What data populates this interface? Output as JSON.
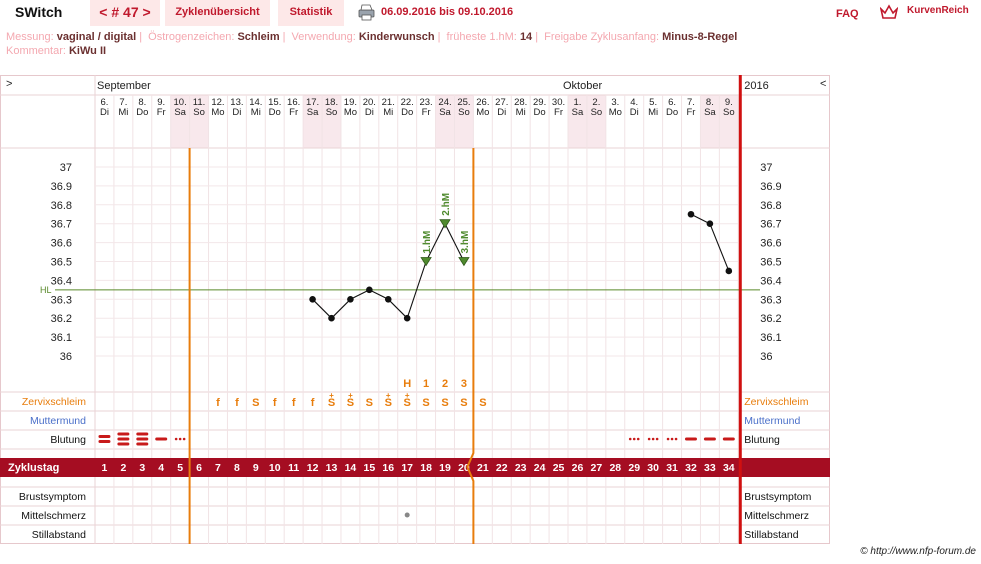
{
  "app": {
    "title": "SWitch"
  },
  "tabs": {
    "cycle": "< # 47 >",
    "overview": "Zyklenübersicht",
    "stats": "Statistik"
  },
  "date_range": "06.09.2016 bis 09.10.2016",
  "faq": "FAQ",
  "brand": "KurvenReich",
  "info": {
    "messung_label": "Messung:",
    "messung": "vaginal / digital",
    "oestrogen_label": "Östrogenzeichen:",
    "oestrogen": "Schleim",
    "verwendung_label": "Verwendung:",
    "verwendung": "Kinderwunsch",
    "fruehest_label": "früheste 1.hM:",
    "fruehest": "14",
    "freigabe_label": "Freigabe Zyklusanfang:",
    "freigabe": "Minus-8-Regel",
    "kommentar_label": "Kommentar:",
    "kommentar": "KiWu II"
  },
  "header": {
    "collapse_left": ">",
    "collapse_right": "<",
    "month_1": "September",
    "month_2": "Oktober",
    "year": "2016"
  },
  "copyright": "© http://www.nfp-forum.de",
  "colors": {
    "accent": "#c0192d",
    "orange": "#e87d0c",
    "hl_line": "#5a8a2a",
    "weekend": "#f8e8ec",
    "zyklustag_bg": "#a50d22",
    "mm_label": "#4a6fc9"
  },
  "chart_data": {
    "type": "line",
    "days": [
      {
        "date": "6.",
        "wd": "Di"
      },
      {
        "date": "7.",
        "wd": "Mi"
      },
      {
        "date": "8.",
        "wd": "Do"
      },
      {
        "date": "9.",
        "wd": "Fr"
      },
      {
        "date": "10.",
        "wd": "Sa"
      },
      {
        "date": "11.",
        "wd": "So"
      },
      {
        "date": "12.",
        "wd": "Mo"
      },
      {
        "date": "13.",
        "wd": "Di"
      },
      {
        "date": "14.",
        "wd": "Mi"
      },
      {
        "date": "15.",
        "wd": "Do"
      },
      {
        "date": "16.",
        "wd": "Fr"
      },
      {
        "date": "17.",
        "wd": "Sa"
      },
      {
        "date": "18.",
        "wd": "So"
      },
      {
        "date": "19.",
        "wd": "Mo"
      },
      {
        "date": "20.",
        "wd": "Di"
      },
      {
        "date": "21.",
        "wd": "Mi"
      },
      {
        "date": "22.",
        "wd": "Do"
      },
      {
        "date": "23.",
        "wd": "Fr"
      },
      {
        "date": "24.",
        "wd": "Sa"
      },
      {
        "date": "25.",
        "wd": "So"
      },
      {
        "date": "26.",
        "wd": "Mo"
      },
      {
        "date": "27.",
        "wd": "Di"
      },
      {
        "date": "28.",
        "wd": "Mi"
      },
      {
        "date": "29.",
        "wd": "Do"
      },
      {
        "date": "30.",
        "wd": "Fr"
      },
      {
        "date": "1.",
        "wd": "Sa"
      },
      {
        "date": "2.",
        "wd": "So"
      },
      {
        "date": "3.",
        "wd": "Mo"
      },
      {
        "date": "4.",
        "wd": "Di"
      },
      {
        "date": "5.",
        "wd": "Mi"
      },
      {
        "date": "6.",
        "wd": "Do"
      },
      {
        "date": "7.",
        "wd": "Fr"
      },
      {
        "date": "8.",
        "wd": "Sa"
      },
      {
        "date": "9.",
        "wd": "So"
      }
    ],
    "weekend_day_indices": [
      4,
      5,
      11,
      12,
      18,
      19,
      25,
      26,
      32,
      33
    ],
    "y_ticks": [
      "37",
      "36.9",
      "36.8",
      "36.7",
      "36.6",
      "36.5",
      "36.4",
      "36.3",
      "36.2",
      "36.1",
      "36"
    ],
    "ylim": [
      36.0,
      37.0
    ],
    "temperatures": [
      {
        "day": 12,
        "temp": 36.3
      },
      {
        "day": 13,
        "temp": 36.2
      },
      {
        "day": 14,
        "temp": 36.3
      },
      {
        "day": 15,
        "temp": 36.35
      },
      {
        "day": 16,
        "temp": 36.3
      },
      {
        "day": 17,
        "temp": 36.2
      },
      {
        "day": 18,
        "temp": 36.5,
        "marker": "1.hM"
      },
      {
        "day": 19,
        "temp": 36.7,
        "marker": "2.hM"
      },
      {
        "day": 20,
        "temp": 36.5,
        "marker": "3.hM"
      },
      {
        "day": 32,
        "temp": 36.75
      },
      {
        "day": 33,
        "temp": 36.7
      },
      {
        "day": 34,
        "temp": 36.45
      }
    ],
    "hl_label": "HL",
    "hl_value": 36.35,
    "lines_after_day": [
      5,
      20
    ],
    "rows": {
      "zervix_label": "Zervixschleim",
      "muttermund_label": "Muttermund",
      "blutung_label": "Blutung",
      "zyklustag_label": "Zyklustag",
      "brust_label": "Brustsymptom",
      "mittel_label": "Mittelschmerz",
      "still_label": "Stillabstand"
    },
    "peak_labels": [
      {
        "day": 17,
        "label": "H"
      },
      {
        "day": 18,
        "label": "1"
      },
      {
        "day": 19,
        "label": "2"
      },
      {
        "day": 20,
        "label": "3"
      }
    ],
    "zervix": [
      {
        "day": 7,
        "v": "f"
      },
      {
        "day": 8,
        "v": "f"
      },
      {
        "day": 9,
        "v": "S"
      },
      {
        "day": 10,
        "v": "f"
      },
      {
        "day": 11,
        "v": "f"
      },
      {
        "day": 12,
        "v": "f"
      },
      {
        "day": 13,
        "v": "S+"
      },
      {
        "day": 14,
        "v": "S+"
      },
      {
        "day": 15,
        "v": "S"
      },
      {
        "day": 16,
        "v": "S+"
      },
      {
        "day": 17,
        "v": "S+"
      },
      {
        "day": 18,
        "v": "S"
      },
      {
        "day": 19,
        "v": "S"
      },
      {
        "day": 20,
        "v": "S"
      },
      {
        "day": 21,
        "v": "S"
      }
    ],
    "blutung": [
      {
        "day": 1,
        "v": "heavy2"
      },
      {
        "day": 2,
        "v": "heavy3"
      },
      {
        "day": 3,
        "v": "heavy3"
      },
      {
        "day": 4,
        "v": "medium"
      },
      {
        "day": 5,
        "v": "spotting"
      },
      {
        "day": 29,
        "v": "spotting"
      },
      {
        "day": 30,
        "v": "spotting"
      },
      {
        "day": 31,
        "v": "spotting"
      },
      {
        "day": 32,
        "v": "medium"
      },
      {
        "day": 33,
        "v": "medium"
      },
      {
        "day": 34,
        "v": "medium"
      }
    ],
    "mittelschmerz": [
      {
        "day": 17,
        "v": "dot"
      }
    ],
    "cycle_days": [
      "1",
      "2",
      "3",
      "4",
      "5",
      "6",
      "7",
      "8",
      "9",
      "10",
      "11",
      "12",
      "13",
      "14",
      "15",
      "16",
      "17",
      "18",
      "19",
      "20",
      "21",
      "22",
      "23",
      "24",
      "25",
      "26",
      "27",
      "28",
      "29",
      "30",
      "31",
      "32",
      "33",
      "34"
    ]
  }
}
